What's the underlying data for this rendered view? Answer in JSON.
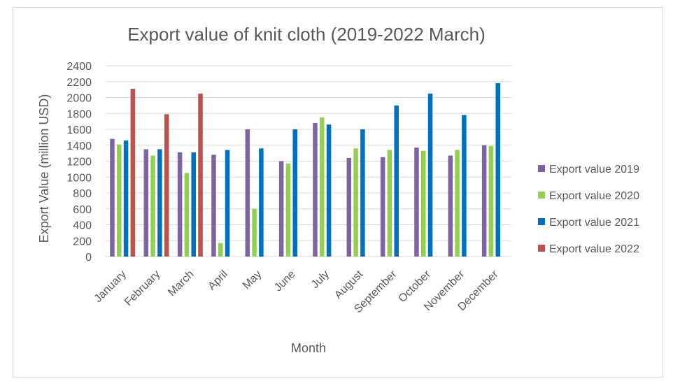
{
  "chart_data": {
    "type": "bar",
    "title": "Export value of knit cloth (2019-2022 March)",
    "xlabel": "Month",
    "ylabel": "Export Value (million USD)",
    "ylim": [
      0,
      2400
    ],
    "yticks": [
      0,
      200,
      400,
      600,
      800,
      1000,
      1200,
      1400,
      1600,
      1800,
      2000,
      2200,
      2400
    ],
    "grid": true,
    "legend_position": "right",
    "categories": [
      "January",
      "February",
      "March",
      "April",
      "May",
      "June",
      "July",
      "August",
      "September",
      "October",
      "November",
      "December"
    ],
    "series": [
      {
        "name": "Export value 2019",
        "color": "#8064a2",
        "values": [
          1480,
          1350,
          1310,
          1280,
          1600,
          1200,
          1680,
          1240,
          1250,
          1370,
          1270,
          1400
        ]
      },
      {
        "name": "Export value 2020",
        "color": "#92d050",
        "values": [
          1410,
          1270,
          1050,
          170,
          600,
          1170,
          1750,
          1360,
          1340,
          1330,
          1340,
          1390
        ]
      },
      {
        "name": "Export value 2021",
        "color": "#0070c0",
        "values": [
          1460,
          1350,
          1310,
          1340,
          1360,
          1600,
          1660,
          1600,
          1900,
          2050,
          1780,
          2180
        ]
      },
      {
        "name": "Export value 2022",
        "color": "#c0504d",
        "values": [
          2110,
          1790,
          2050,
          null,
          null,
          null,
          null,
          null,
          null,
          null,
          null,
          null
        ]
      }
    ]
  }
}
